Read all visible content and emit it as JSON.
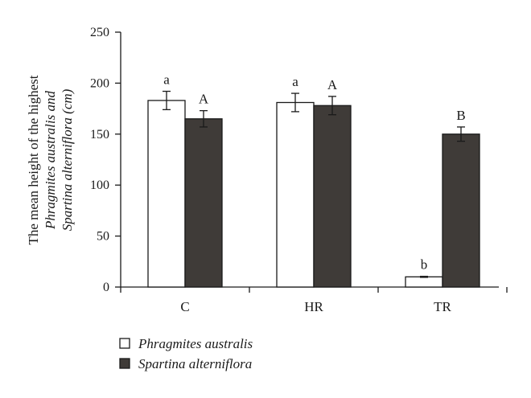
{
  "chart_data": {
    "type": "bar",
    "categories": [
      "C",
      "HR",
      "TR"
    ],
    "series": [
      {
        "name": "Phragmites australis",
        "color": "#ffffff",
        "values": [
          183,
          181,
          10
        ],
        "errors": [
          9,
          9,
          0.5
        ],
        "sig_labels": [
          "a",
          "a",
          "b"
        ]
      },
      {
        "name": "Spartina alterniflora",
        "color": "#3f3b38",
        "values": [
          165,
          178,
          150
        ],
        "errors": [
          8,
          9,
          7
        ],
        "sig_labels": [
          "A",
          "A",
          "B"
        ]
      }
    ],
    "ylabel_lines": [
      "The mean height of the highest",
      "Phragmites australis and",
      "Spartina alterniflora (cm)"
    ],
    "yticks": [
      "0",
      "50",
      "100",
      "150",
      "200",
      "250"
    ],
    "ylim": [
      0,
      250
    ],
    "grid": false,
    "legend_position": "bottom-left"
  }
}
